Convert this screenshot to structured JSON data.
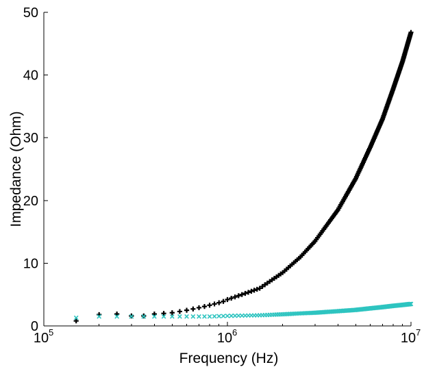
{
  "chart_data": {
    "type": "scatter",
    "title": "",
    "xlabel": "Frequency (Hz)",
    "ylabel": "Impedance (Ohm)",
    "x_scale": "log",
    "xlim": [
      100000,
      10000000
    ],
    "ylim": [
      0,
      50
    ],
    "x_ticks": [
      {
        "base": "10",
        "exp": "5",
        "value": 100000
      },
      {
        "base": "10",
        "exp": "6",
        "value": 1000000
      },
      {
        "base": "10",
        "exp": "7",
        "value": 10000000
      }
    ],
    "y_ticks": [
      0,
      10,
      20,
      30,
      40,
      50
    ],
    "grid": false,
    "legend": "none",
    "series": [
      {
        "marker": "plus",
        "color": "#000000",
        "points": [
          [
            150000,
            0.8
          ],
          [
            200000,
            1.8
          ],
          [
            250000,
            1.9
          ],
          [
            300000,
            1.6
          ],
          [
            350000,
            1.6
          ],
          [
            400000,
            1.9
          ],
          [
            450000,
            2.0
          ],
          [
            500000,
            2.1
          ],
          [
            550000,
            2.3
          ],
          [
            600000,
            2.5
          ],
          [
            650000,
            2.7
          ],
          [
            700000,
            2.9
          ],
          [
            750000,
            3.1
          ],
          [
            800000,
            3.3
          ],
          [
            850000,
            3.5
          ],
          [
            900000,
            3.7
          ],
          [
            950000,
            3.9
          ],
          [
            1000000,
            4.2
          ],
          [
            1200000,
            5.0
          ],
          [
            1500000,
            6.0
          ],
          [
            2000000,
            8.5
          ],
          [
            2500000,
            11.0
          ],
          [
            3000000,
            13.5
          ],
          [
            4000000,
            18.5
          ],
          [
            5000000,
            23.5
          ],
          [
            6000000,
            28.5
          ],
          [
            7000000,
            33.0
          ],
          [
            8000000,
            37.8
          ],
          [
            9000000,
            42.2
          ],
          [
            10000000,
            46.8
          ]
        ]
      },
      {
        "marker": "x",
        "color": "#2ec4c0",
        "points": [
          [
            150000,
            1.3
          ],
          [
            200000,
            1.5
          ],
          [
            250000,
            1.5
          ],
          [
            300000,
            1.5
          ],
          [
            350000,
            1.5
          ],
          [
            400000,
            1.5
          ],
          [
            450000,
            1.5
          ],
          [
            500000,
            1.5
          ],
          [
            550000,
            1.5
          ],
          [
            600000,
            1.5
          ],
          [
            650000,
            1.5
          ],
          [
            700000,
            1.5
          ],
          [
            800000,
            1.5
          ],
          [
            900000,
            1.55
          ],
          [
            1000000,
            1.6
          ],
          [
            1500000,
            1.7
          ],
          [
            2000000,
            1.85
          ],
          [
            2500000,
            2.0
          ],
          [
            3000000,
            2.1
          ],
          [
            4000000,
            2.35
          ],
          [
            5000000,
            2.55
          ],
          [
            6000000,
            2.8
          ],
          [
            7000000,
            3.0
          ],
          [
            8000000,
            3.2
          ],
          [
            9000000,
            3.35
          ],
          [
            10000000,
            3.5
          ]
        ]
      }
    ]
  }
}
